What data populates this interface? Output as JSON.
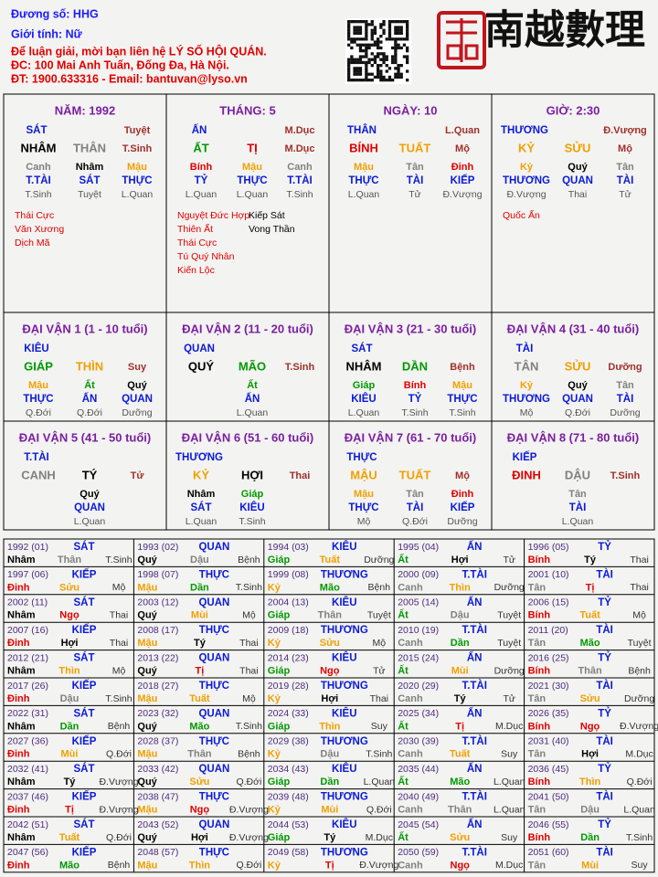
{
  "header": {
    "owner": "Đương số: HHG",
    "gender": "Giới tính:  Nữ",
    "contact": "Để luận giải, mời bạn liên hệ LÝ SỐ HỘI QUÁN.",
    "address": "ĐC: 100 Mai Anh Tuấn, Đống Đa, Hà Nội.",
    "phone": "ĐT: 1900.633316 - Email: bantuvan@lyso.vn",
    "logo": "南越數理"
  },
  "colors": {
    "element": {
      "Giáp": "#009900",
      "Ất": "#009900",
      "Dần": "#009900",
      "Mão": "#009900",
      "Bính": "#e00000",
      "Đinh": "#e00000",
      "Tị": "#e00000",
      "Ngọ": "#e00000",
      "Mậu": "#f0a000",
      "Kỷ": "#f0a000",
      "Thìn": "#f0a000",
      "Tuất": "#f0a000",
      "Sửu": "#f0a000",
      "Mùi": "#f0a000",
      "Canh": "#808080",
      "Tân": "#808080",
      "Thân": "#808080",
      "Dậu": "#808080",
      "Nhâm": "#000000",
      "Quý": "#000000",
      "Tý": "#000000",
      "Hợi": "#000000"
    },
    "god": "#0a1ad8",
    "stage": "#a0302a",
    "sub_stage": "#555555",
    "heading": "#7b1fa2",
    "star": "#e00000",
    "star_right": "#000000",
    "year_label": "#4b2a80",
    "year_stage": "#333333",
    "header_info": "#1a1aff",
    "header_contact": "#e00000"
  },
  "pillars": [
    {
      "heading": "NĂM: 1992",
      "god": "SÁT",
      "stage_top": "Tuyệt",
      "stem": "NHÂM",
      "branch": "THÂN",
      "stage": "T.Sinh",
      "hidden": [
        "Canh",
        "Nhâm",
        "Mậu"
      ],
      "hidden_gods": [
        "T.TÀI",
        "SÁT",
        "THỰC"
      ],
      "hidden_stages": [
        "T.Sinh",
        "Tuyệt",
        "L.Quan"
      ],
      "stars": [
        "Thái Cực",
        "Văn Xương",
        "Dịch Mã"
      ],
      "stars_right": []
    },
    {
      "heading": "THÁNG: 5",
      "god": "ẤN",
      "stage_top": "M.Dục",
      "stem": "ẤT",
      "branch": "TỊ",
      "stage": "M.Dục",
      "hidden": [
        "Bính",
        "Mậu",
        "Canh"
      ],
      "hidden_gods": [
        "TỶ",
        "THỰC",
        "T.TÀI"
      ],
      "hidden_stages": [
        "L.Quan",
        "L.Quan",
        "T.Sinh"
      ],
      "stars": [
        "Nguyệt Đức Hợp",
        "Thiên Ất",
        "Thái Cực",
        "Tú Quý Nhân",
        "Kiến Lộc"
      ],
      "stars_right": [
        "Kiếp Sát",
        "Vong Thần"
      ]
    },
    {
      "heading": "NGÀY: 10",
      "god": "THÂN",
      "stage_top": "L.Quan",
      "stem": "BÍNH",
      "branch": "TUẤT",
      "stage": "Mộ",
      "hidden": [
        "Mậu",
        "Tân",
        "Đinh"
      ],
      "hidden_gods": [
        "THỰC",
        "TÀI",
        "KIẾP"
      ],
      "hidden_stages": [
        "L.Quan",
        "Tử",
        "Đ.Vượng"
      ],
      "stars": [],
      "stars_right": []
    },
    {
      "heading": "GIỜ: 2:30",
      "god": "THƯƠNG",
      "stage_top": "Đ.Vượng",
      "stem": "KỶ",
      "branch": "SỬU",
      "stage": "Mộ",
      "hidden": [
        "Kỷ",
        "Quý",
        "Tân"
      ],
      "hidden_gods": [
        "THƯƠNG",
        "QUAN",
        "TÀI"
      ],
      "hidden_stages": [
        "Đ.Vượng",
        "Thai",
        "Tử"
      ],
      "stars": [
        "Quốc Ấn"
      ],
      "stars_right": []
    }
  ],
  "luck": [
    {
      "heading": "ĐẠI VẬN 1 (1 - 10 tuổi)",
      "god": "KIÊU",
      "stem": "GIÁP",
      "branch": "THÌN",
      "stage": "Suy",
      "hidden": [
        "Mậu",
        "Ất",
        "Quý"
      ],
      "hidden_gods": [
        "THỰC",
        "ẤN",
        "QUAN"
      ],
      "hidden_stages": [
        "Q.Đới",
        "Q.Đới",
        "Dưỡng"
      ]
    },
    {
      "heading": "ĐẠI VẬN 2 (11 - 20 tuổi)",
      "god": "QUAN",
      "stem": "QUÝ",
      "branch": "MÃO",
      "stage": "T.Sinh",
      "hidden": [
        "Ất"
      ],
      "hidden_gods": [
        "ẤN"
      ],
      "hidden_stages": [
        "L.Quan"
      ]
    },
    {
      "heading": "ĐẠI VẬN 3 (21 - 30 tuổi)",
      "god": "SÁT",
      "stem": "NHÂM",
      "branch": "DẦN",
      "stage": "Bệnh",
      "hidden": [
        "Giáp",
        "Bính",
        "Mậu"
      ],
      "hidden_gods": [
        "KIÊU",
        "TỶ",
        "THỰC"
      ],
      "hidden_stages": [
        "L.Quan",
        "T.Sinh",
        "T.Sinh"
      ]
    },
    {
      "heading": "ĐẠI VẬN 4 (31 - 40 tuổi)",
      "god": "TÀI",
      "stem": "TÂN",
      "branch": "SỬU",
      "stage": "Dưỡng",
      "hidden": [
        "Kỷ",
        "Quý",
        "Tân"
      ],
      "hidden_gods": [
        "THƯƠNG",
        "QUAN",
        "TÀI"
      ],
      "hidden_stages": [
        "Mộ",
        "Q.Đới",
        "Dưỡng"
      ]
    },
    {
      "heading": "ĐẠI VẬN 5 (41 - 50 tuổi)",
      "god": "T.TÀI",
      "stem": "CANH",
      "branch": "TÝ",
      "stage": "Tử",
      "hidden": [
        "Quý"
      ],
      "hidden_gods": [
        "QUAN"
      ],
      "hidden_stages": [
        "L.Quan"
      ]
    },
    {
      "heading": "ĐẠI VẬN 6 (51 - 60 tuổi)",
      "god": "THƯƠNG",
      "stem": "KỶ",
      "branch": "HỢI",
      "stage": "Thai",
      "hidden": [
        "Nhâm",
        "Giáp"
      ],
      "hidden_gods": [
        "SÁT",
        "KIÊU"
      ],
      "hidden_stages": [
        "L.Quan",
        "T.Sinh"
      ]
    },
    {
      "heading": "ĐẠI VẬN 7 (61 - 70 tuổi)",
      "god": "THỰC",
      "stem": "MẬU",
      "branch": "TUẤT",
      "stage": "Mộ",
      "hidden": [
        "Mậu",
        "Tân",
        "Đinh"
      ],
      "hidden_gods": [
        "THỰC",
        "TÀI",
        "KIẾP"
      ],
      "hidden_stages": [
        "Mộ",
        "Q.Đới",
        "Dưỡng"
      ]
    },
    {
      "heading": "ĐẠI VẬN 8 (71 - 80 tuổi)",
      "god": "KIẾP",
      "stem": "ĐINH",
      "branch": "DẬU",
      "stage": "T.Sinh",
      "hidden": [
        "Tân"
      ],
      "hidden_gods": [
        "TÀI"
      ],
      "hidden_stages": [
        "L.Quan"
      ]
    }
  ],
  "years": [
    [
      "1992 (01)",
      "SÁT",
      "Nhâm",
      "Thân",
      "T.Sinh"
    ],
    [
      "1993 (02)",
      "QUAN",
      "Quý",
      "Dậu",
      "Bệnh"
    ],
    [
      "1994 (03)",
      "KIÊU",
      "Giáp",
      "Tuất",
      "Dưỡng"
    ],
    [
      "1995 (04)",
      "ẤN",
      "Ất",
      "Hợi",
      "Tử"
    ],
    [
      "1996 (05)",
      "TỶ",
      "Bính",
      "Tý",
      "Thai"
    ],
    [
      "1997 (06)",
      "KIẾP",
      "Đinh",
      "Sửu",
      "Mộ"
    ],
    [
      "1998 (07)",
      "THỰC",
      "Mậu",
      "Dần",
      "T.Sinh"
    ],
    [
      "1999 (08)",
      "THƯƠNG",
      "Kỷ",
      "Mão",
      "Bệnh"
    ],
    [
      "2000 (09)",
      "T.TÀI",
      "Canh",
      "Thìn",
      "Dưỡng"
    ],
    [
      "2001 (10)",
      "TÀI",
      "Tân",
      "Tị",
      "Thai"
    ],
    [
      "2002 (11)",
      "SÁT",
      "Nhâm",
      "Ngọ",
      "Thai"
    ],
    [
      "2003 (12)",
      "QUAN",
      "Quý",
      "Mùi",
      "Mộ"
    ],
    [
      "2004 (13)",
      "KIÊU",
      "Giáp",
      "Thân",
      "Tuyệt"
    ],
    [
      "2005 (14)",
      "ẤN",
      "Ất",
      "Dậu",
      "Tuyệt"
    ],
    [
      "2006 (15)",
      "TỶ",
      "Bính",
      "Tuất",
      "Mộ"
    ],
    [
      "2007 (16)",
      "KIẾP",
      "Đinh",
      "Hợi",
      "Thai"
    ],
    [
      "2008 (17)",
      "THỰC",
      "Mậu",
      "Tý",
      "Thai"
    ],
    [
      "2009 (18)",
      "THƯƠNG",
      "Kỷ",
      "Sửu",
      "Mộ"
    ],
    [
      "2010 (19)",
      "T.TÀI",
      "Canh",
      "Dần",
      "Tuyệt"
    ],
    [
      "2011 (20)",
      "TÀI",
      "Tân",
      "Mão",
      "Tuyệt"
    ],
    [
      "2012 (21)",
      "SÁT",
      "Nhâm",
      "Thìn",
      "Mộ"
    ],
    [
      "2013 (22)",
      "QUAN",
      "Quý",
      "Tị",
      "Thai"
    ],
    [
      "2014 (23)",
      "KIÊU",
      "Giáp",
      "Ngọ",
      "Tử"
    ],
    [
      "2015 (24)",
      "ẤN",
      "Ất",
      "Mùi",
      "Dưỡng"
    ],
    [
      "2016 (25)",
      "TỶ",
      "Bính",
      "Thân",
      "Bệnh"
    ],
    [
      "2017 (26)",
      "KIẾP",
      "Đinh",
      "Dậu",
      "T.Sinh"
    ],
    [
      "2018 (27)",
      "THỰC",
      "Mậu",
      "Tuất",
      "Mộ"
    ],
    [
      "2019 (28)",
      "THƯƠNG",
      "Kỷ",
      "Hợi",
      "Thai"
    ],
    [
      "2020 (29)",
      "T.TÀI",
      "Canh",
      "Tý",
      "Tử"
    ],
    [
      "2021 (30)",
      "TÀI",
      "Tân",
      "Sửu",
      "Dưỡng"
    ],
    [
      "2022 (31)",
      "SÁT",
      "Nhâm",
      "Dần",
      "Bệnh"
    ],
    [
      "2023 (32)",
      "QUAN",
      "Quý",
      "Mão",
      "T.Sinh"
    ],
    [
      "2024 (33)",
      "KIÊU",
      "Giáp",
      "Thìn",
      "Suy"
    ],
    [
      "2025 (34)",
      "ẤN",
      "Ất",
      "Tị",
      "M.Dục"
    ],
    [
      "2026 (35)",
      "TỶ",
      "Bính",
      "Ngọ",
      "Đ.Vượng"
    ],
    [
      "2027 (36)",
      "KIẾP",
      "Đinh",
      "Mùi",
      "Q.Đới"
    ],
    [
      "2028 (37)",
      "THỰC",
      "Mậu",
      "Thân",
      "Bệnh"
    ],
    [
      "2029 (38)",
      "THƯƠNG",
      "Kỷ",
      "Dậu",
      "T.Sinh"
    ],
    [
      "2030 (39)",
      "T.TÀI",
      "Canh",
      "Tuất",
      "Suy"
    ],
    [
      "2031 (40)",
      "TÀI",
      "Tân",
      "Hợi",
      "M.Dục"
    ],
    [
      "2032 (41)",
      "SÁT",
      "Nhâm",
      "Tý",
      "Đ.Vượng"
    ],
    [
      "2033 (42)",
      "QUAN",
      "Quý",
      "Sửu",
      "Q.Đới"
    ],
    [
      "2034 (43)",
      "KIÊU",
      "Giáp",
      "Dần",
      "L.Quan"
    ],
    [
      "2035 (44)",
      "ẤN",
      "Ất",
      "Mão",
      "L.Quan"
    ],
    [
      "2036 (45)",
      "TỶ",
      "Bính",
      "Thìn",
      "Q.Đới"
    ],
    [
      "2037 (46)",
      "KIẾP",
      "Đinh",
      "Tị",
      "Đ.Vượng"
    ],
    [
      "2038 (47)",
      "THỰC",
      "Mậu",
      "Ngọ",
      "Đ.Vượng"
    ],
    [
      "2039 (48)",
      "THƯƠNG",
      "Kỷ",
      "Mùi",
      "Q.Đới"
    ],
    [
      "2040 (49)",
      "T.TÀI",
      "Canh",
      "Thân",
      "L.Quan"
    ],
    [
      "2041 (50)",
      "TÀI",
      "Tân",
      "Dậu",
      "L.Quan"
    ],
    [
      "2042 (51)",
      "SÁT",
      "Nhâm",
      "Tuất",
      "Q.Đới"
    ],
    [
      "2043 (52)",
      "QUAN",
      "Quý",
      "Hợi",
      "Đ.Vượng"
    ],
    [
      "2044 (53)",
      "KIÊU",
      "Giáp",
      "Tý",
      "M.Dục"
    ],
    [
      "2045 (54)",
      "ẤN",
      "Ất",
      "Sửu",
      "Suy"
    ],
    [
      "2046 (55)",
      "TỶ",
      "Bính",
      "Dần",
      "T.Sinh"
    ],
    [
      "2047 (56)",
      "KIẾP",
      "Đinh",
      "Mão",
      "Bệnh"
    ],
    [
      "2048 (57)",
      "THỰC",
      "Mậu",
      "Thìn",
      "Q.Đới"
    ],
    [
      "2049 (58)",
      "THƯƠNG",
      "Kỷ",
      "Tị",
      "Đ.Vượng"
    ],
    [
      "2050 (59)",
      "T.TÀI",
      "Canh",
      "Ngọ",
      "M.Dục"
    ],
    [
      "2051 (60)",
      "TÀI",
      "Tân",
      "Mùi",
      "Suy"
    ]
  ]
}
